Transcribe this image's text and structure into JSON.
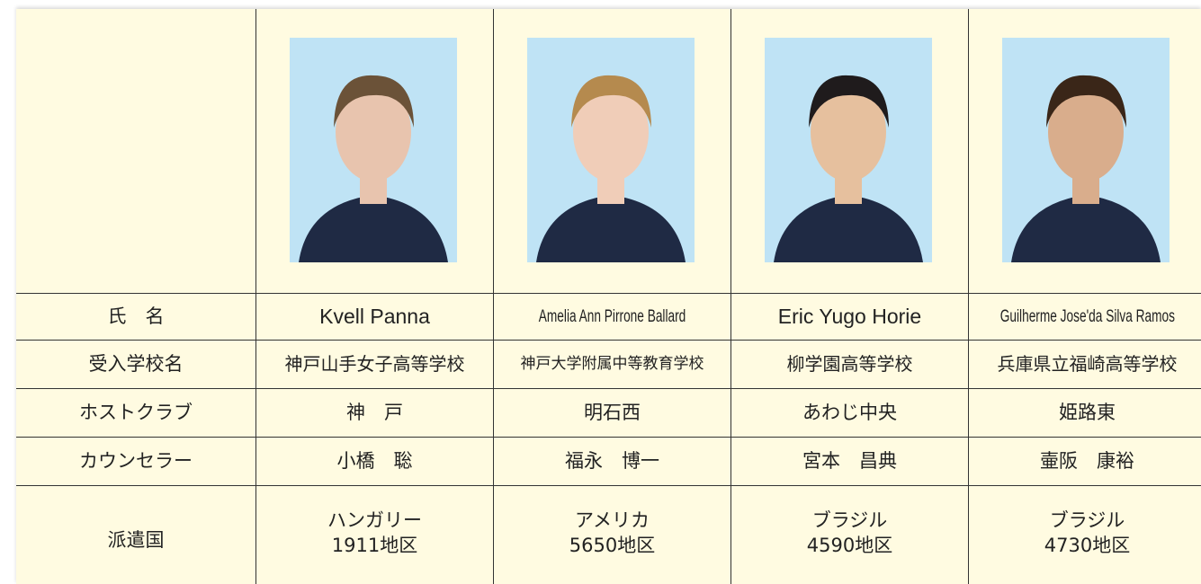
{
  "labels": {
    "name": "氏　名",
    "school": "受入学校名",
    "club": "ホストクラブ",
    "counselor": "カウンセラー",
    "country": "派遣国"
  },
  "students": [
    {
      "name": "Kvell Panna",
      "school": "神戸山手女子高等学校",
      "club": "神　戸",
      "counselor": "小橋　聡",
      "country": "ハンガリー",
      "district": "1911地区"
    },
    {
      "name": "Amelia Ann Pirrone Ballard",
      "school": "神戸大学附属中等教育学校",
      "club": "明石西",
      "counselor": "福永　博一",
      "country": "アメリカ",
      "district": "5650地区"
    },
    {
      "name": "Eric Yugo Horie",
      "school": "柳学園高等学校",
      "club": "あわじ中央",
      "counselor": "宮本　昌典",
      "country": "ブラジル",
      "district": "4590地区"
    },
    {
      "name": "Guilherme Jose'da Silva Ramos",
      "school": "兵庫県立福崎高等学校",
      "club": "姫路東",
      "counselor": "壷阪　康裕",
      "country": "ブラジル",
      "district": "4730地区"
    }
  ]
}
